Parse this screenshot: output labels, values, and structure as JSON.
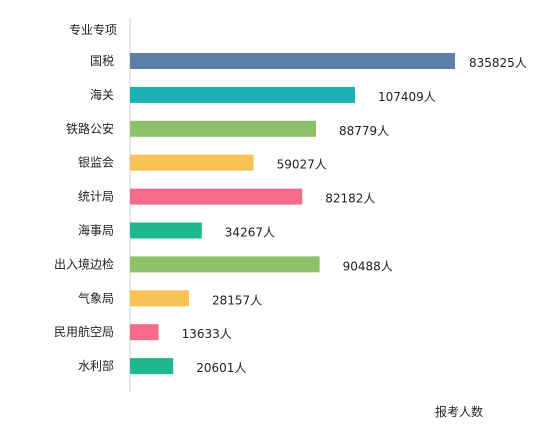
{
  "chart_data": {
    "type": "bar",
    "orientation": "horizontal",
    "category_axis_title": "专业专项",
    "value_axis_title": "报考人数",
    "categories": [
      "国税",
      "海关",
      "铁路公安",
      "银监会",
      "统计局",
      "海事局",
      "出入境边检",
      "气象局",
      "民用航空局",
      "水利部"
    ],
    "values": [
      835825,
      107409,
      88779,
      59027,
      82182,
      34267,
      90488,
      28157,
      13633,
      20601
    ],
    "value_labels": [
      "835825人",
      "107409人",
      "88779人",
      "59027人",
      "82182人",
      "34267人",
      "90488人",
      "28157人",
      "13633人",
      "20601人"
    ],
    "bar_colors": [
      "#5b7fa6",
      "#1ab3b3",
      "#8fc06a",
      "#f7c257",
      "#f56b88",
      "#1fb98e",
      "#8fc06a",
      "#f7c257",
      "#f56b88",
      "#1fb98e"
    ],
    "axis_scale": "broken",
    "grid": false,
    "legend": "none"
  }
}
